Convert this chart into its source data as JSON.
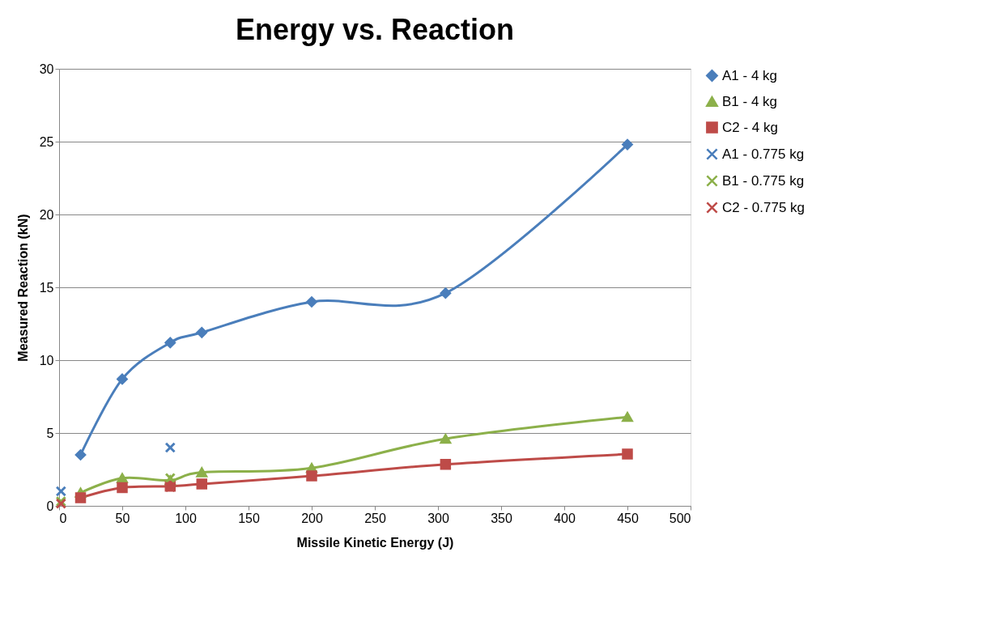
{
  "chart_data": {
    "type": "line",
    "title": "Energy vs. Reaction",
    "xlabel": "Missile Kinetic Energy (J)",
    "ylabel": "Measured Reaction (kN)",
    "xlim": [
      0,
      500
    ],
    "xticks": [
      0,
      50,
      100,
      150,
      200,
      250,
      300,
      350,
      400,
      450,
      500
    ],
    "ylim": [
      0,
      30
    ],
    "yticks": [
      0,
      5,
      10,
      15,
      20,
      25,
      30
    ],
    "grid": "y",
    "legend": "right",
    "series": [
      {
        "name": "A1 - 4 kg",
        "type": "line",
        "marker": "diamond",
        "color": "#4a7ebb",
        "x": [
          17,
          50,
          88,
          113,
          200,
          306,
          450
        ],
        "values": [
          3.5,
          8.7,
          11.2,
          11.9,
          14.0,
          14.6,
          24.8
        ]
      },
      {
        "name": "B1 - 4 kg",
        "type": "line",
        "marker": "triangle",
        "color": "#8cb04a",
        "x": [
          17,
          50,
          88,
          113,
          200,
          306,
          450
        ],
        "values": [
          0.9,
          1.9,
          1.75,
          2.3,
          2.6,
          4.6,
          6.1
        ]
      },
      {
        "name": "C2 - 4 kg",
        "type": "line",
        "marker": "square",
        "color": "#be4b48",
        "x": [
          17,
          50,
          88,
          113,
          200,
          306,
          450
        ],
        "values": [
          0.55,
          1.25,
          1.35,
          1.5,
          2.05,
          2.85,
          3.55
        ]
      },
      {
        "name": "A1 - 0.775 kg",
        "type": "scatter",
        "marker": "cross",
        "color": "#4a7ebb",
        "x": [
          1.5,
          88
        ],
        "values": [
          1.0,
          4.0
        ]
      },
      {
        "name": "B1 - 0.775 kg",
        "type": "scatter",
        "marker": "cross",
        "color": "#8cb04a",
        "x": [
          1.5,
          88
        ],
        "values": [
          0.3,
          1.9
        ]
      },
      {
        "name": "C2 - 0.775 kg",
        "type": "scatter",
        "marker": "cross",
        "color": "#be4b48",
        "x": [
          1.5,
          88
        ],
        "values": [
          0.15,
          1.3
        ]
      }
    ]
  }
}
